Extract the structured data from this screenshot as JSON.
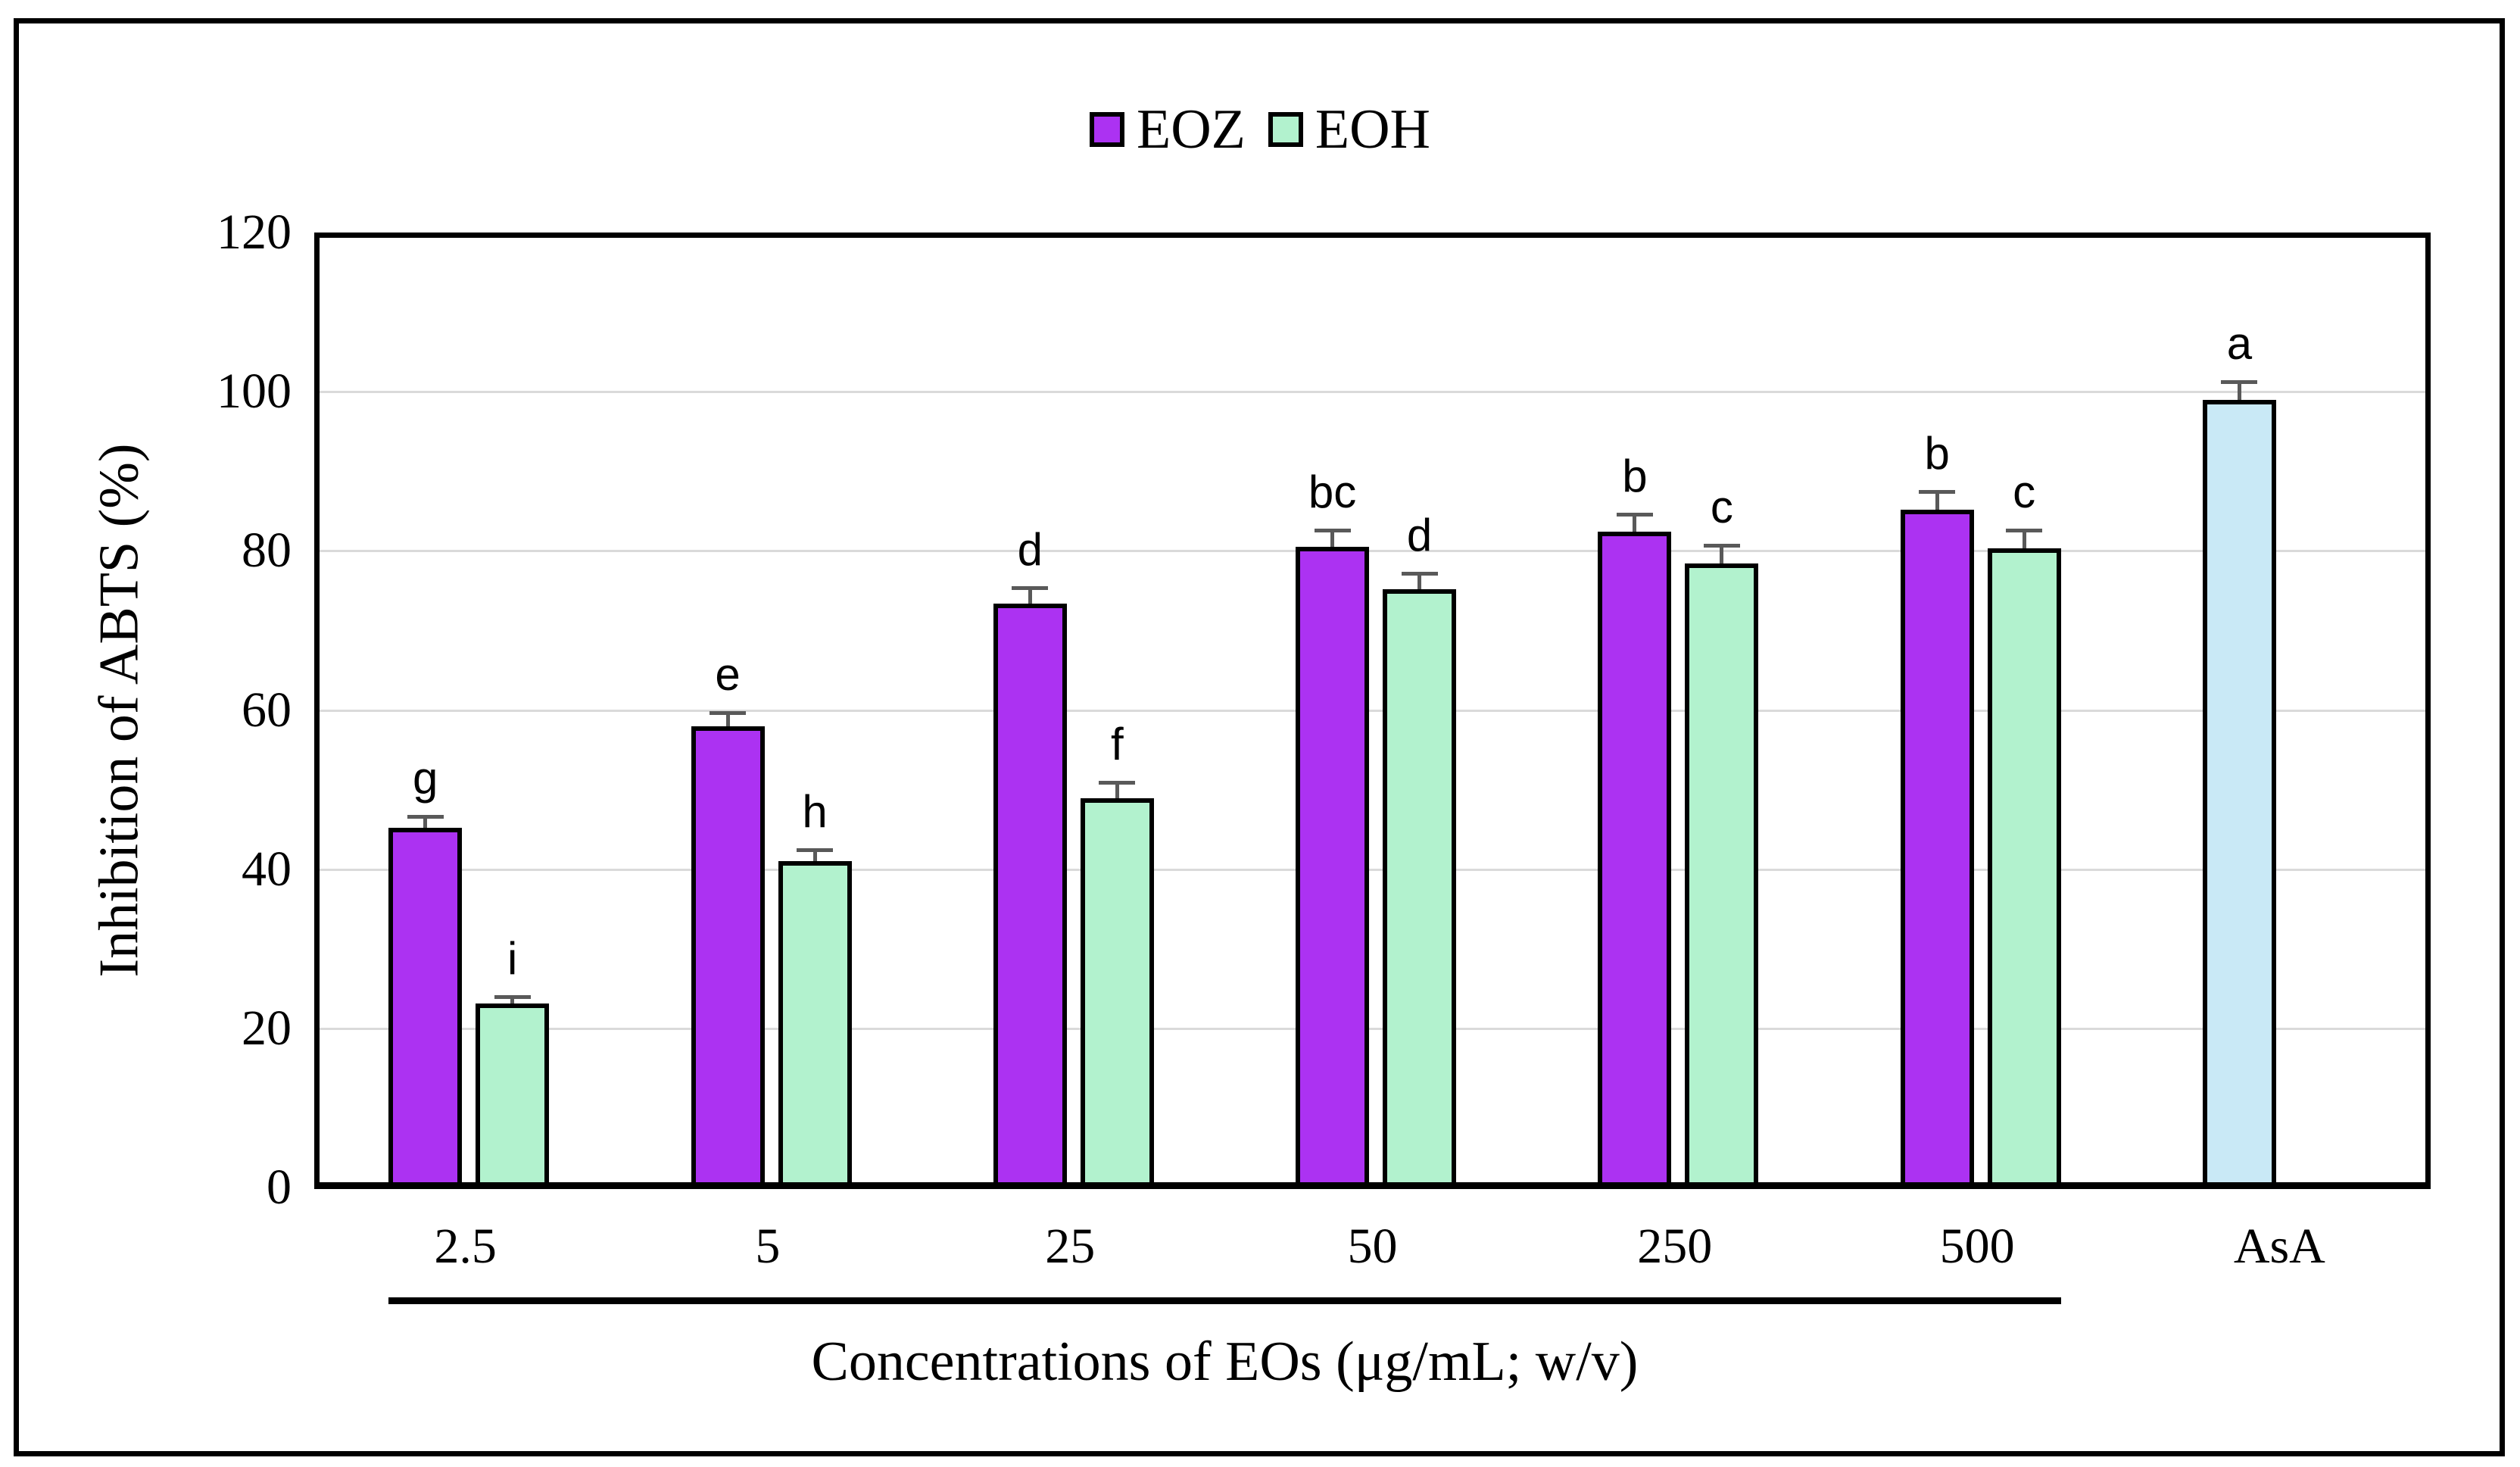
{
  "legend": {
    "items": [
      {
        "label": "EOZ",
        "color": "#AC32F2"
      },
      {
        "label": "EOH",
        "color": "#B2F2CE"
      }
    ]
  },
  "y_axis": {
    "title": "Inhibition of ABTS (%)",
    "ticks": [
      "0",
      "20",
      "40",
      "60",
      "80",
      "100",
      "120"
    ],
    "max": 120
  },
  "x_axis": {
    "title": "Concentrations of EOs (μg/mL; w/v)"
  },
  "colors": {
    "eoz": "#AC32F2",
    "eoh": "#B2F2CE",
    "asa": "#C9E9F6",
    "gridline": "#DADADA",
    "error_bar": "#595959",
    "axis": "#000000"
  },
  "chart_data": {
    "type": "bar",
    "title": "",
    "xlabel": "Concentrations of EOs (μg/mL; w/v)",
    "ylabel": "Inhibition of ABTS (%)",
    "ylim": [
      0,
      120
    ],
    "ytick_step": 20,
    "grid": true,
    "legend_position": "top-center",
    "categories": [
      "2.5",
      "5",
      "25",
      "50",
      "250",
      "500",
      "AsA"
    ],
    "underline_categories_from": "2.5",
    "underline_categories_to": "500",
    "series": [
      {
        "name": "EOZ",
        "in_legend": true,
        "color": "#AC32F2",
        "values": [
          45.2,
          58,
          73.4,
          80.5,
          82.4,
          85.2,
          null
        ],
        "errors": [
          1.4,
          1.7,
          2.0,
          2.1,
          2.2,
          2.3,
          null
        ],
        "sig_letters": [
          "g",
          "e",
          "d",
          "bc",
          "b",
          "b",
          null
        ]
      },
      {
        "name": "EOH",
        "in_legend": true,
        "color": "#B2F2CE",
        "values": [
          23.1,
          41,
          48.9,
          75.2,
          78.4,
          80.3,
          null
        ],
        "errors": [
          0.9,
          1.4,
          2.0,
          2.0,
          2.3,
          2.3,
          null
        ],
        "sig_letters": [
          "i",
          "h",
          "f",
          "d",
          "c",
          "c",
          null
        ]
      },
      {
        "name": "AsA",
        "in_legend": false,
        "color": "#C9E9F6",
        "values": [
          null,
          null,
          null,
          null,
          null,
          null,
          99
        ],
        "errors": [
          null,
          null,
          null,
          null,
          null,
          null,
          2.3
        ],
        "sig_letters": [
          null,
          null,
          null,
          null,
          null,
          null,
          "a"
        ]
      }
    ]
  }
}
